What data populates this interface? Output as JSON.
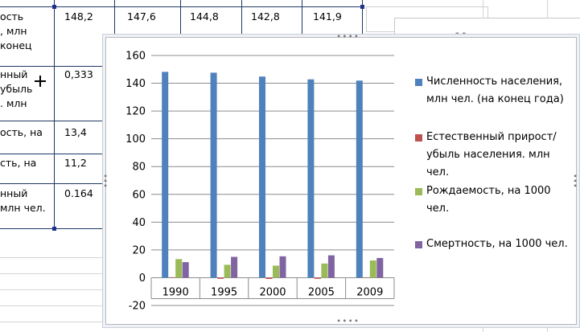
{
  "spreadsheet": {
    "rows": [
      {
        "label": "ость\n, млн\nконец",
        "values": [
          "148,2",
          "147,6",
          "144,8",
          "142,8",
          "141,9"
        ]
      },
      {
        "label": "нный\nубыль\n. млн",
        "values": [
          "0,333",
          "",
          "",
          "",
          ""
        ]
      },
      {
        "label": "ость, на",
        "values": [
          "13,4",
          "",
          "",
          "",
          ""
        ]
      },
      {
        "label": "сть, на",
        "values": [
          "11,2",
          "",
          "",
          "",
          ""
        ]
      },
      {
        "label": "нный\nмлн чел.",
        "values": [
          "0.164",
          "",
          "",
          "",
          ""
        ]
      }
    ],
    "background_title": "Численност"
  },
  "chart_data": {
    "type": "bar",
    "categories": [
      "1990",
      "1995",
      "2000",
      "2005",
      "2009"
    ],
    "series": [
      {
        "name": "Численность населения, млн чел. (на конец года)",
        "values": [
          148.2,
          147.6,
          144.8,
          142.8,
          141.9
        ]
      },
      {
        "name": "Естественный прирост/убыль населения. млн чел.",
        "values": [
          0.333,
          -0.8,
          -0.9,
          -0.8,
          -0.3
        ]
      },
      {
        "name": "Рождаемость, на 1000 чел.",
        "values": [
          13.4,
          9.3,
          8.7,
          10.2,
          12.4
        ]
      },
      {
        "name": "Смертность, на 1000 чел.",
        "values": [
          11.2,
          15.0,
          15.4,
          16.1,
          14.2
        ]
      }
    ],
    "colors": [
      "#4f81bd",
      "#c0504d",
      "#9bbb59",
      "#8064a2"
    ],
    "ylim": [
      -20,
      160
    ],
    "yticks": [
      "-20",
      "0",
      "20",
      "40",
      "60",
      "80",
      "100",
      "120",
      "140",
      "160"
    ],
    "grid": true,
    "legend_position": "right"
  }
}
